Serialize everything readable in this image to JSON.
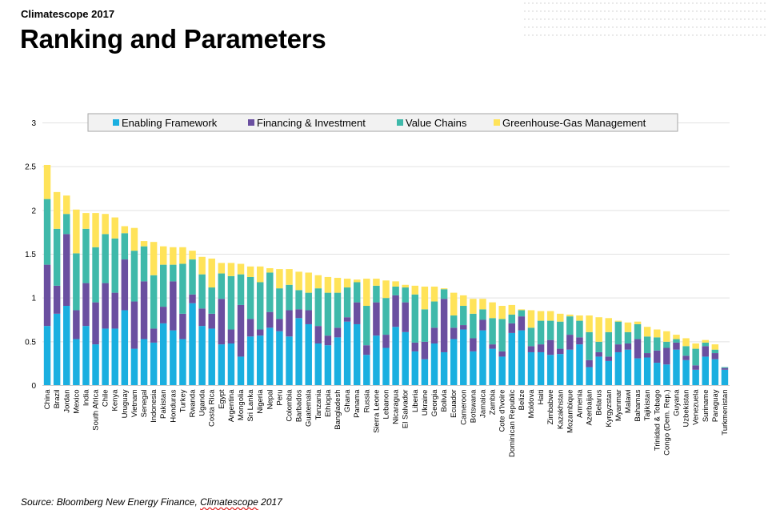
{
  "header": {
    "kicker": "Climatescope 2017",
    "title": "Ranking and Parameters"
  },
  "footer": {
    "source_prefix": "Source: Bloomberg New Energy Finance, ",
    "source_word": "Climatescope",
    "source_suffix": " 2017"
  },
  "chart_data": {
    "type": "bar",
    "stacked": true,
    "title": "",
    "xlabel": "",
    "ylabel": "",
    "ylim": [
      0,
      3
    ],
    "yticks": [
      0,
      0.5,
      1,
      1.5,
      2,
      2.5,
      3
    ],
    "ytick_labels": [
      "0",
      "0.5",
      "1",
      "1.5",
      "2",
      "2.5",
      "3"
    ],
    "grid": true,
    "legend_position": "top",
    "categories": [
      "China",
      "Brazil",
      "Jordan",
      "Mexico",
      "India",
      "South Africa",
      "Chile",
      "Kenya",
      "Uruguay",
      "Vietnam",
      "Senegal",
      "Indonesia",
      "Pakistan",
      "Honduras",
      "Turkey",
      "Rwanda",
      "Uganda",
      "Costa Rica",
      "Egypt",
      "Argentina",
      "Mongolia",
      "Sri Lanka",
      "Nigeria",
      "Nepal",
      "Peru",
      "Colombia",
      "Barbados",
      "Guatemala",
      "Tanzania",
      "Ethiopia",
      "Bangladesh",
      "Ghana",
      "Panama",
      "Russia",
      "Sierra Leone",
      "Lebanon",
      "Nicaragua",
      "El Salvador",
      "Liberia",
      "Ukraine",
      "Georgia",
      "Bolivia",
      "Ecuador",
      "Cameroon",
      "Botswana",
      "Jamaica",
      "Zambia",
      "Cote d'Ivoire",
      "Dominican Republic",
      "Belize",
      "Moldova",
      "Haiti",
      "Zimbabwe",
      "Kazakhstan",
      "Mozambique",
      "Armenia",
      "Azerbaijan",
      "Belarus",
      "Kyrgyzstan",
      "Myanmar",
      "Malawi",
      "Bahamas",
      "Tajikistan",
      "Trinidad & Tobago",
      "Congo (Dem. Rep.)",
      "Guyana",
      "Uzbekistan",
      "Venezuela",
      "Suriname",
      "Paraguay",
      "Turkmenistan"
    ],
    "series": [
      {
        "name": "Enabling Framework",
        "color": "#1aafe0",
        "values": [
          0.68,
          0.82,
          0.91,
          0.53,
          0.68,
          0.47,
          0.65,
          0.65,
          0.86,
          0.42,
          0.53,
          0.49,
          0.71,
          0.63,
          0.53,
          0.94,
          0.68,
          0.65,
          0.47,
          0.48,
          0.33,
          0.56,
          0.57,
          0.66,
          0.62,
          0.56,
          0.77,
          0.7,
          0.48,
          0.46,
          0.55,
          0.73,
          0.7,
          0.35,
          0.57,
          0.43,
          0.67,
          0.61,
          0.39,
          0.3,
          0.48,
          0.38,
          0.53,
          0.64,
          0.39,
          0.63,
          0.42,
          0.33,
          0.6,
          0.63,
          0.38,
          0.38,
          0.35,
          0.36,
          0.41,
          0.47,
          0.21,
          0.33,
          0.28,
          0.38,
          0.41,
          0.31,
          0.32,
          0.26,
          0.24,
          0.41,
          0.29,
          0.18,
          0.33,
          0.3,
          0.18
        ]
      },
      {
        "name": "Financing & Investment",
        "color": "#6a4fa0",
        "values": [
          0.7,
          0.32,
          0.82,
          0.33,
          0.49,
          0.48,
          0.52,
          0.41,
          0.58,
          0.54,
          0.66,
          0.16,
          0.19,
          0.56,
          0.29,
          0.1,
          0.2,
          0.17,
          0.52,
          0.16,
          0.59,
          0.2,
          0.07,
          0.18,
          0.14,
          0.3,
          0.1,
          0.16,
          0.2,
          0.11,
          0.11,
          0.05,
          0.25,
          0.11,
          0.38,
          0.15,
          0.36,
          0.34,
          0.1,
          0.2,
          0.18,
          0.61,
          0.13,
          0.05,
          0.15,
          0.12,
          0.05,
          0.06,
          0.11,
          0.16,
          0.07,
          0.09,
          0.17,
          0.06,
          0.17,
          0.08,
          0.08,
          0.05,
          0.05,
          0.09,
          0.07,
          0.22,
          0.05,
          0.14,
          0.19,
          0.08,
          0.05,
          0.05,
          0.12,
          0.07,
          0.02
        ]
      },
      {
        "name": "Value Chains",
        "color": "#3fb9aa",
        "values": [
          0.75,
          0.65,
          0.23,
          0.65,
          0.62,
          0.63,
          0.56,
          0.62,
          0.3,
          0.58,
          0.4,
          0.61,
          0.48,
          0.19,
          0.57,
          0.4,
          0.39,
          0.3,
          0.29,
          0.61,
          0.35,
          0.48,
          0.54,
          0.45,
          0.35,
          0.29,
          0.22,
          0.2,
          0.43,
          0.49,
          0.4,
          0.34,
          0.23,
          0.45,
          0.19,
          0.42,
          0.1,
          0.17,
          0.55,
          0.37,
          0.3,
          0.11,
          0.14,
          0.22,
          0.28,
          0.12,
          0.3,
          0.37,
          0.1,
          0.07,
          0.21,
          0.27,
          0.22,
          0.31,
          0.21,
          0.19,
          0.32,
          0.12,
          0.28,
          0.26,
          0.13,
          0.17,
          0.19,
          0.15,
          0.07,
          0.04,
          0.11,
          0.19,
          0.04,
          0.04,
          0.01
        ]
      },
      {
        "name": "Greenhouse-Gas Management",
        "color": "#ffe359",
        "values": [
          0.39,
          0.42,
          0.21,
          0.5,
          0.18,
          0.39,
          0.23,
          0.24,
          0.08,
          0.26,
          0.06,
          0.38,
          0.21,
          0.2,
          0.19,
          0.1,
          0.2,
          0.33,
          0.12,
          0.15,
          0.12,
          0.12,
          0.18,
          0.05,
          0.22,
          0.18,
          0.21,
          0.23,
          0.15,
          0.18,
          0.17,
          0.1,
          0.03,
          0.31,
          0.08,
          0.2,
          0.06,
          0.03,
          0.1,
          0.26,
          0.17,
          0.01,
          0.26,
          0.12,
          0.17,
          0.12,
          0.18,
          0.15,
          0.11,
          0.01,
          0.2,
          0.11,
          0.11,
          0.09,
          0.02,
          0.06,
          0.19,
          0.28,
          0.16,
          0.01,
          0.11,
          0.03,
          0.11,
          0.09,
          0.12,
          0.05,
          0.09,
          0.06,
          0.03,
          0.06,
          0.0
        ]
      }
    ]
  }
}
